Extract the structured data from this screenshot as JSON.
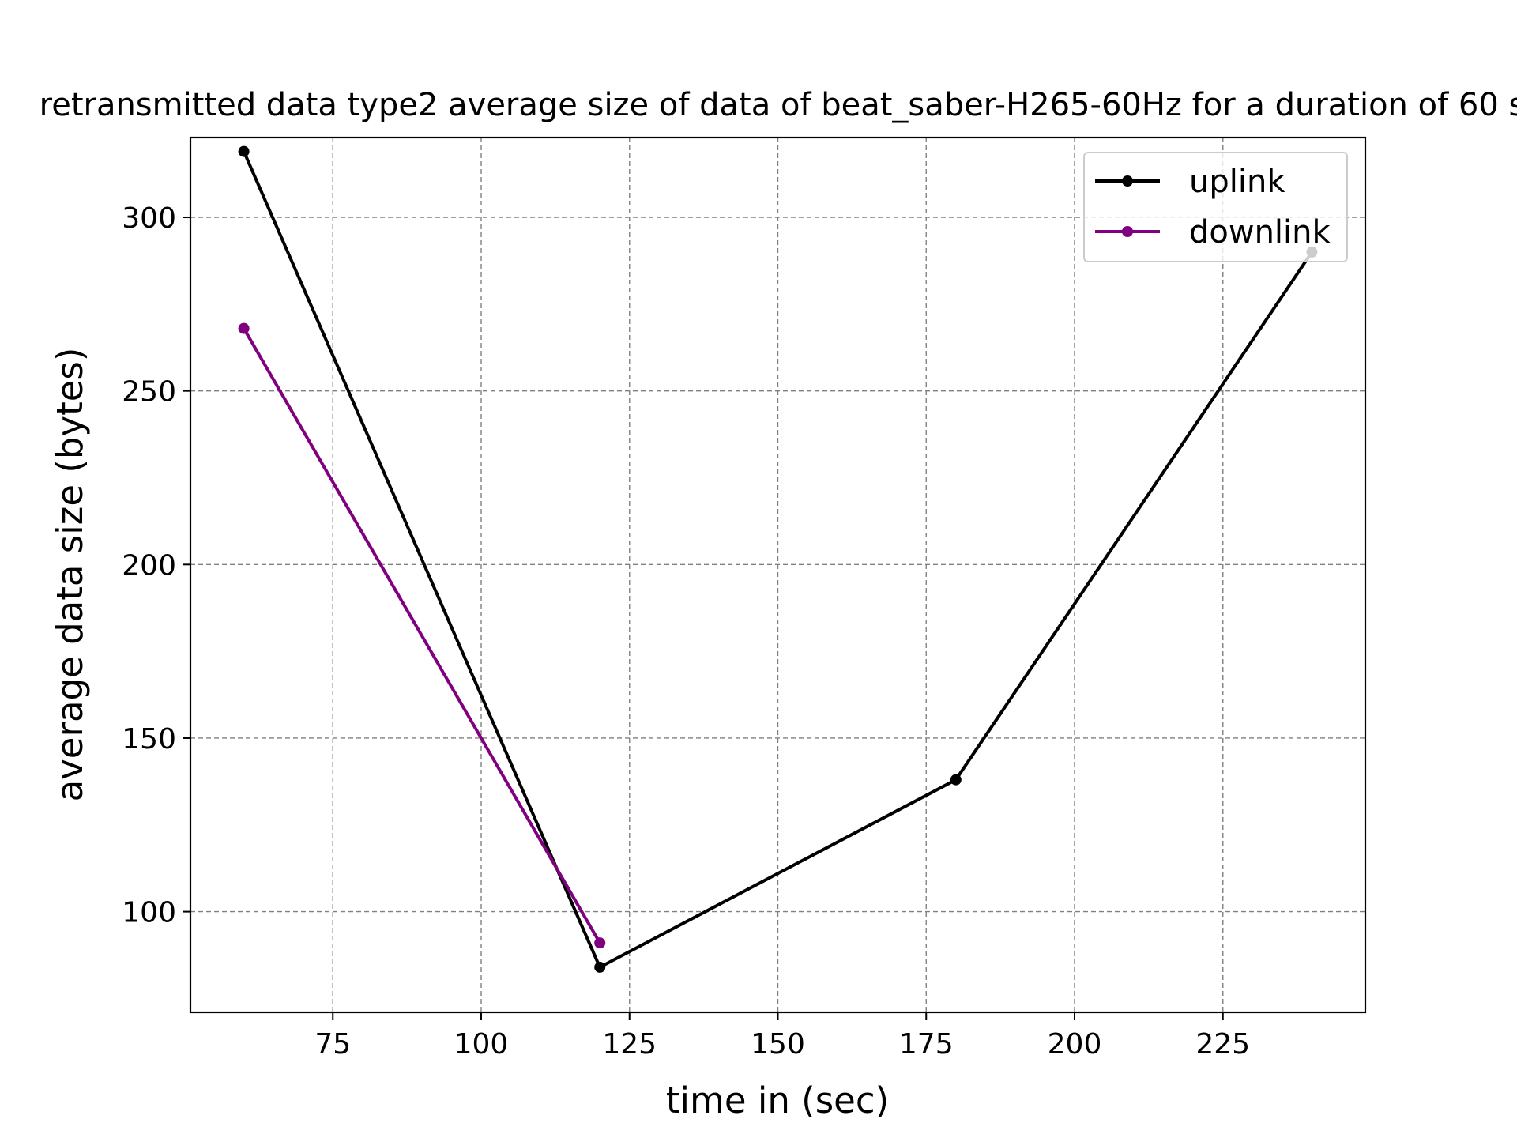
{
  "chart_data": {
    "type": "line",
    "title": "retransmitted data type2 average size of data of beat_saber-H265-60Hz for a duration of 60 s",
    "xlabel": "time in (sec)",
    "ylabel": "average data size (bytes)",
    "xlim": [
      51,
      249
    ],
    "ylim": [
      71,
      323
    ],
    "xticks": [
      75,
      100,
      125,
      150,
      175,
      200,
      225
    ],
    "yticks": [
      100,
      150,
      200,
      250,
      300
    ],
    "grid": true,
    "legend_position": "top-right",
    "series": [
      {
        "name": "uplink",
        "color": "#000000",
        "x": [
          60,
          120,
          180,
          240
        ],
        "y": [
          319,
          84,
          138,
          290
        ]
      },
      {
        "name": "downlink",
        "color": "#800080",
        "x": [
          60,
          120
        ],
        "y": [
          268,
          91
        ]
      }
    ]
  }
}
